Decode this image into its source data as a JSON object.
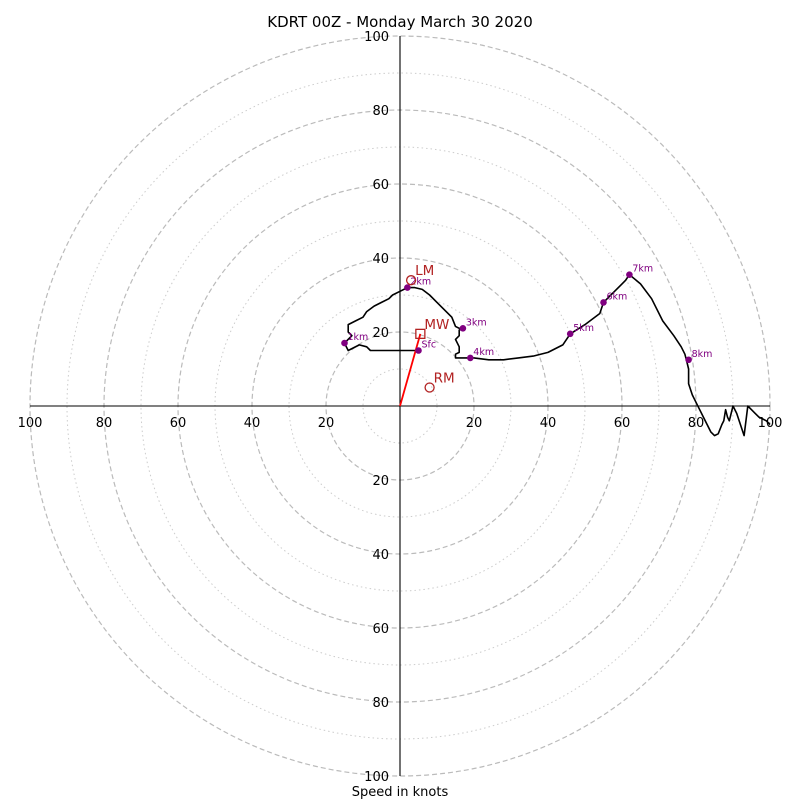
{
  "chart_data": {
    "type": "scatter",
    "subtype": "hodograph",
    "title": "KDRT 00Z - Monday March 30 2020",
    "xlabel": "Speed in knots",
    "ylabel": "",
    "xlim": [
      -100,
      100
    ],
    "ylim": [
      -100,
      100
    ],
    "major_rings": [
      20,
      40,
      60,
      80,
      100
    ],
    "minor_rings": [
      10,
      30,
      50,
      70,
      90
    ],
    "axis_ticks": [
      20,
      40,
      60,
      80,
      100
    ],
    "axis_tick_labels": {
      "x_left": [
        "100",
        "80",
        "60",
        "40",
        "20"
      ],
      "x_right": [
        "20",
        "40",
        "60",
        "80",
        "100"
      ],
      "y_top": [
        "100",
        "80",
        "60",
        "40",
        "20"
      ],
      "y_bottom": [
        "20",
        "40",
        "60",
        "80",
        "100"
      ]
    },
    "grid": true,
    "colors": {
      "profile": "#000000",
      "height_markers": "#800080",
      "storm_motion": "#b22222",
      "shear_vector": "#ff0000",
      "major_ring": "#bbbbbb",
      "minor_ring": "#cccccc"
    },
    "hodograph_line": {
      "x": [
        5,
        4,
        -8,
        -9,
        -11,
        -14,
        -15,
        -13,
        -14,
        -14,
        -12,
        -10,
        -9,
        -7,
        -5,
        -3,
        -2,
        0,
        2,
        4,
        6,
        8,
        10,
        12,
        14,
        15,
        16,
        17,
        16,
        16,
        15,
        16,
        16,
        15,
        15,
        17,
        19,
        20,
        24,
        28,
        32,
        36,
        40,
        44,
        46,
        50,
        54,
        55,
        56,
        58,
        60,
        61,
        62,
        65,
        68,
        71,
        74,
        76,
        77,
        77.5,
        78,
        78,
        79,
        80,
        81,
        82,
        83,
        84,
        85,
        86,
        87,
        87.5,
        88,
        88.5,
        89,
        90,
        91,
        92,
        93,
        94,
        95,
        96,
        97,
        98,
        99,
        100
      ],
      "y": [
        15,
        15,
        15,
        16,
        16.5,
        15,
        17,
        19,
        20,
        22,
        23,
        24,
        25.5,
        27,
        28,
        29,
        30,
        31,
        32,
        32,
        31.5,
        30,
        28,
        26,
        24,
        21.5,
        21,
        21,
        20.5,
        19,
        18,
        16,
        14.5,
        14,
        13,
        13,
        13,
        13,
        12.5,
        12.5,
        13,
        13.5,
        14.5,
        16.5,
        19.5,
        22,
        25,
        28,
        29,
        31,
        33,
        34,
        35.5,
        33,
        29,
        23,
        19,
        16,
        14,
        12,
        10,
        6,
        3,
        1,
        -1,
        -3,
        -5,
        -7,
        -8,
        -7.5,
        -5,
        -4,
        -1,
        -3,
        -4,
        0,
        -2,
        -5,
        -8,
        0,
        -1,
        -2,
        -3,
        -3.5,
        -4,
        -5
      ]
    },
    "height_markers": [
      {
        "label": "Sfc",
        "x": 5,
        "y": 15
      },
      {
        "label": "1km",
        "x": -15,
        "y": 17
      },
      {
        "label": "2km",
        "x": 2,
        "y": 32
      },
      {
        "label": "3km",
        "x": 17,
        "y": 21
      },
      {
        "label": "4km",
        "x": 19,
        "y": 13
      },
      {
        "label": "5km",
        "x": 46,
        "y": 19.5
      },
      {
        "label": "6km",
        "x": 55,
        "y": 28
      },
      {
        "label": "7km",
        "x": 62,
        "y": 35.5
      },
      {
        "label": "8km",
        "x": 78,
        "y": 12.5
      }
    ],
    "storm_motion": [
      {
        "label": "LM",
        "x": 3,
        "y": 34,
        "marker": "circle"
      },
      {
        "label": "MW",
        "x": 5.5,
        "y": 19.5,
        "marker": "square"
      },
      {
        "label": "RM",
        "x": 8,
        "y": 5,
        "marker": "circle"
      }
    ],
    "shear_vector": {
      "x0": 0,
      "y0": 0,
      "x1": 5.5,
      "y1": 19.5
    }
  }
}
